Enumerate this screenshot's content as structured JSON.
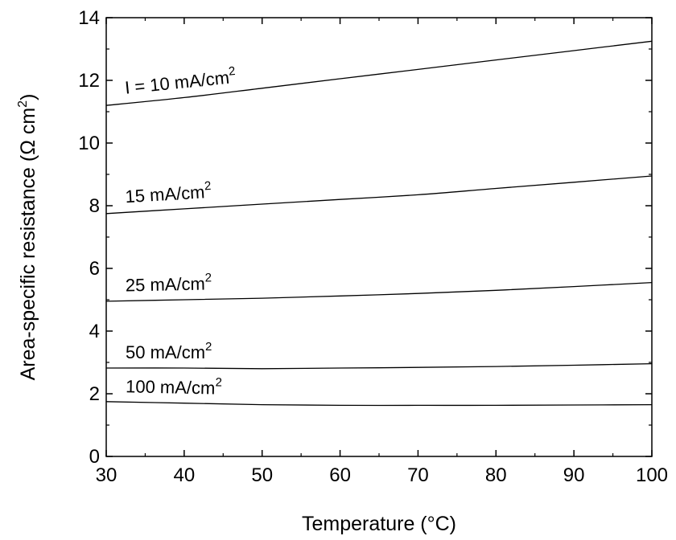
{
  "chart_data": {
    "type": "line",
    "xlabel": "Temperature (°C)",
    "ylabel": "Area-specific resistance (Ω cm²)",
    "xlim": [
      30,
      100
    ],
    "ylim": [
      0,
      14
    ],
    "xticks": [
      30,
      40,
      50,
      60,
      70,
      80,
      90,
      100
    ],
    "yticks": [
      0,
      2,
      4,
      6,
      8,
      10,
      12,
      14
    ],
    "grid": false,
    "legend": "none",
    "series": [
      {
        "name": "I = 10 mA/cm2",
        "x": [
          30,
          40,
          50,
          60,
          70,
          80,
          90,
          100
        ],
        "y": [
          11.2,
          11.45,
          11.75,
          12.05,
          12.35,
          12.65,
          12.95,
          13.25
        ]
      },
      {
        "name": "15 mA/cm2",
        "x": [
          30,
          40,
          50,
          60,
          70,
          80,
          90,
          100
        ],
        "y": [
          7.75,
          7.9,
          8.05,
          8.2,
          8.35,
          8.55,
          8.75,
          8.95
        ]
      },
      {
        "name": "25 mA/cm2",
        "x": [
          30,
          40,
          50,
          60,
          70,
          80,
          90,
          100
        ],
        "y": [
          4.95,
          5.0,
          5.05,
          5.12,
          5.2,
          5.3,
          5.42,
          5.55
        ]
      },
      {
        "name": "50 mA/cm2",
        "x": [
          30,
          40,
          50,
          60,
          70,
          80,
          90,
          100
        ],
        "y": [
          2.82,
          2.82,
          2.8,
          2.82,
          2.84,
          2.87,
          2.91,
          2.96
        ]
      },
      {
        "name": "100 mA/cm2",
        "x": [
          30,
          40,
          50,
          60,
          70,
          80,
          90,
          100
        ],
        "y": [
          1.75,
          1.7,
          1.65,
          1.63,
          1.63,
          1.63,
          1.64,
          1.65
        ]
      }
    ],
    "series_label_parts": [
      {
        "base": "I = 10 mA/cm",
        "sup": "2"
      },
      {
        "base": "15 mA/cm",
        "sup": "2"
      },
      {
        "base": "25 mA/cm",
        "sup": "2"
      },
      {
        "base": "50 mA/cm",
        "sup": "2"
      },
      {
        "base": "100 mA/cm",
        "sup": "2"
      }
    ],
    "ylabel_parts": {
      "base": "Area-specific resistance (Ω cm",
      "sup": "2",
      "tail": ")"
    }
  }
}
